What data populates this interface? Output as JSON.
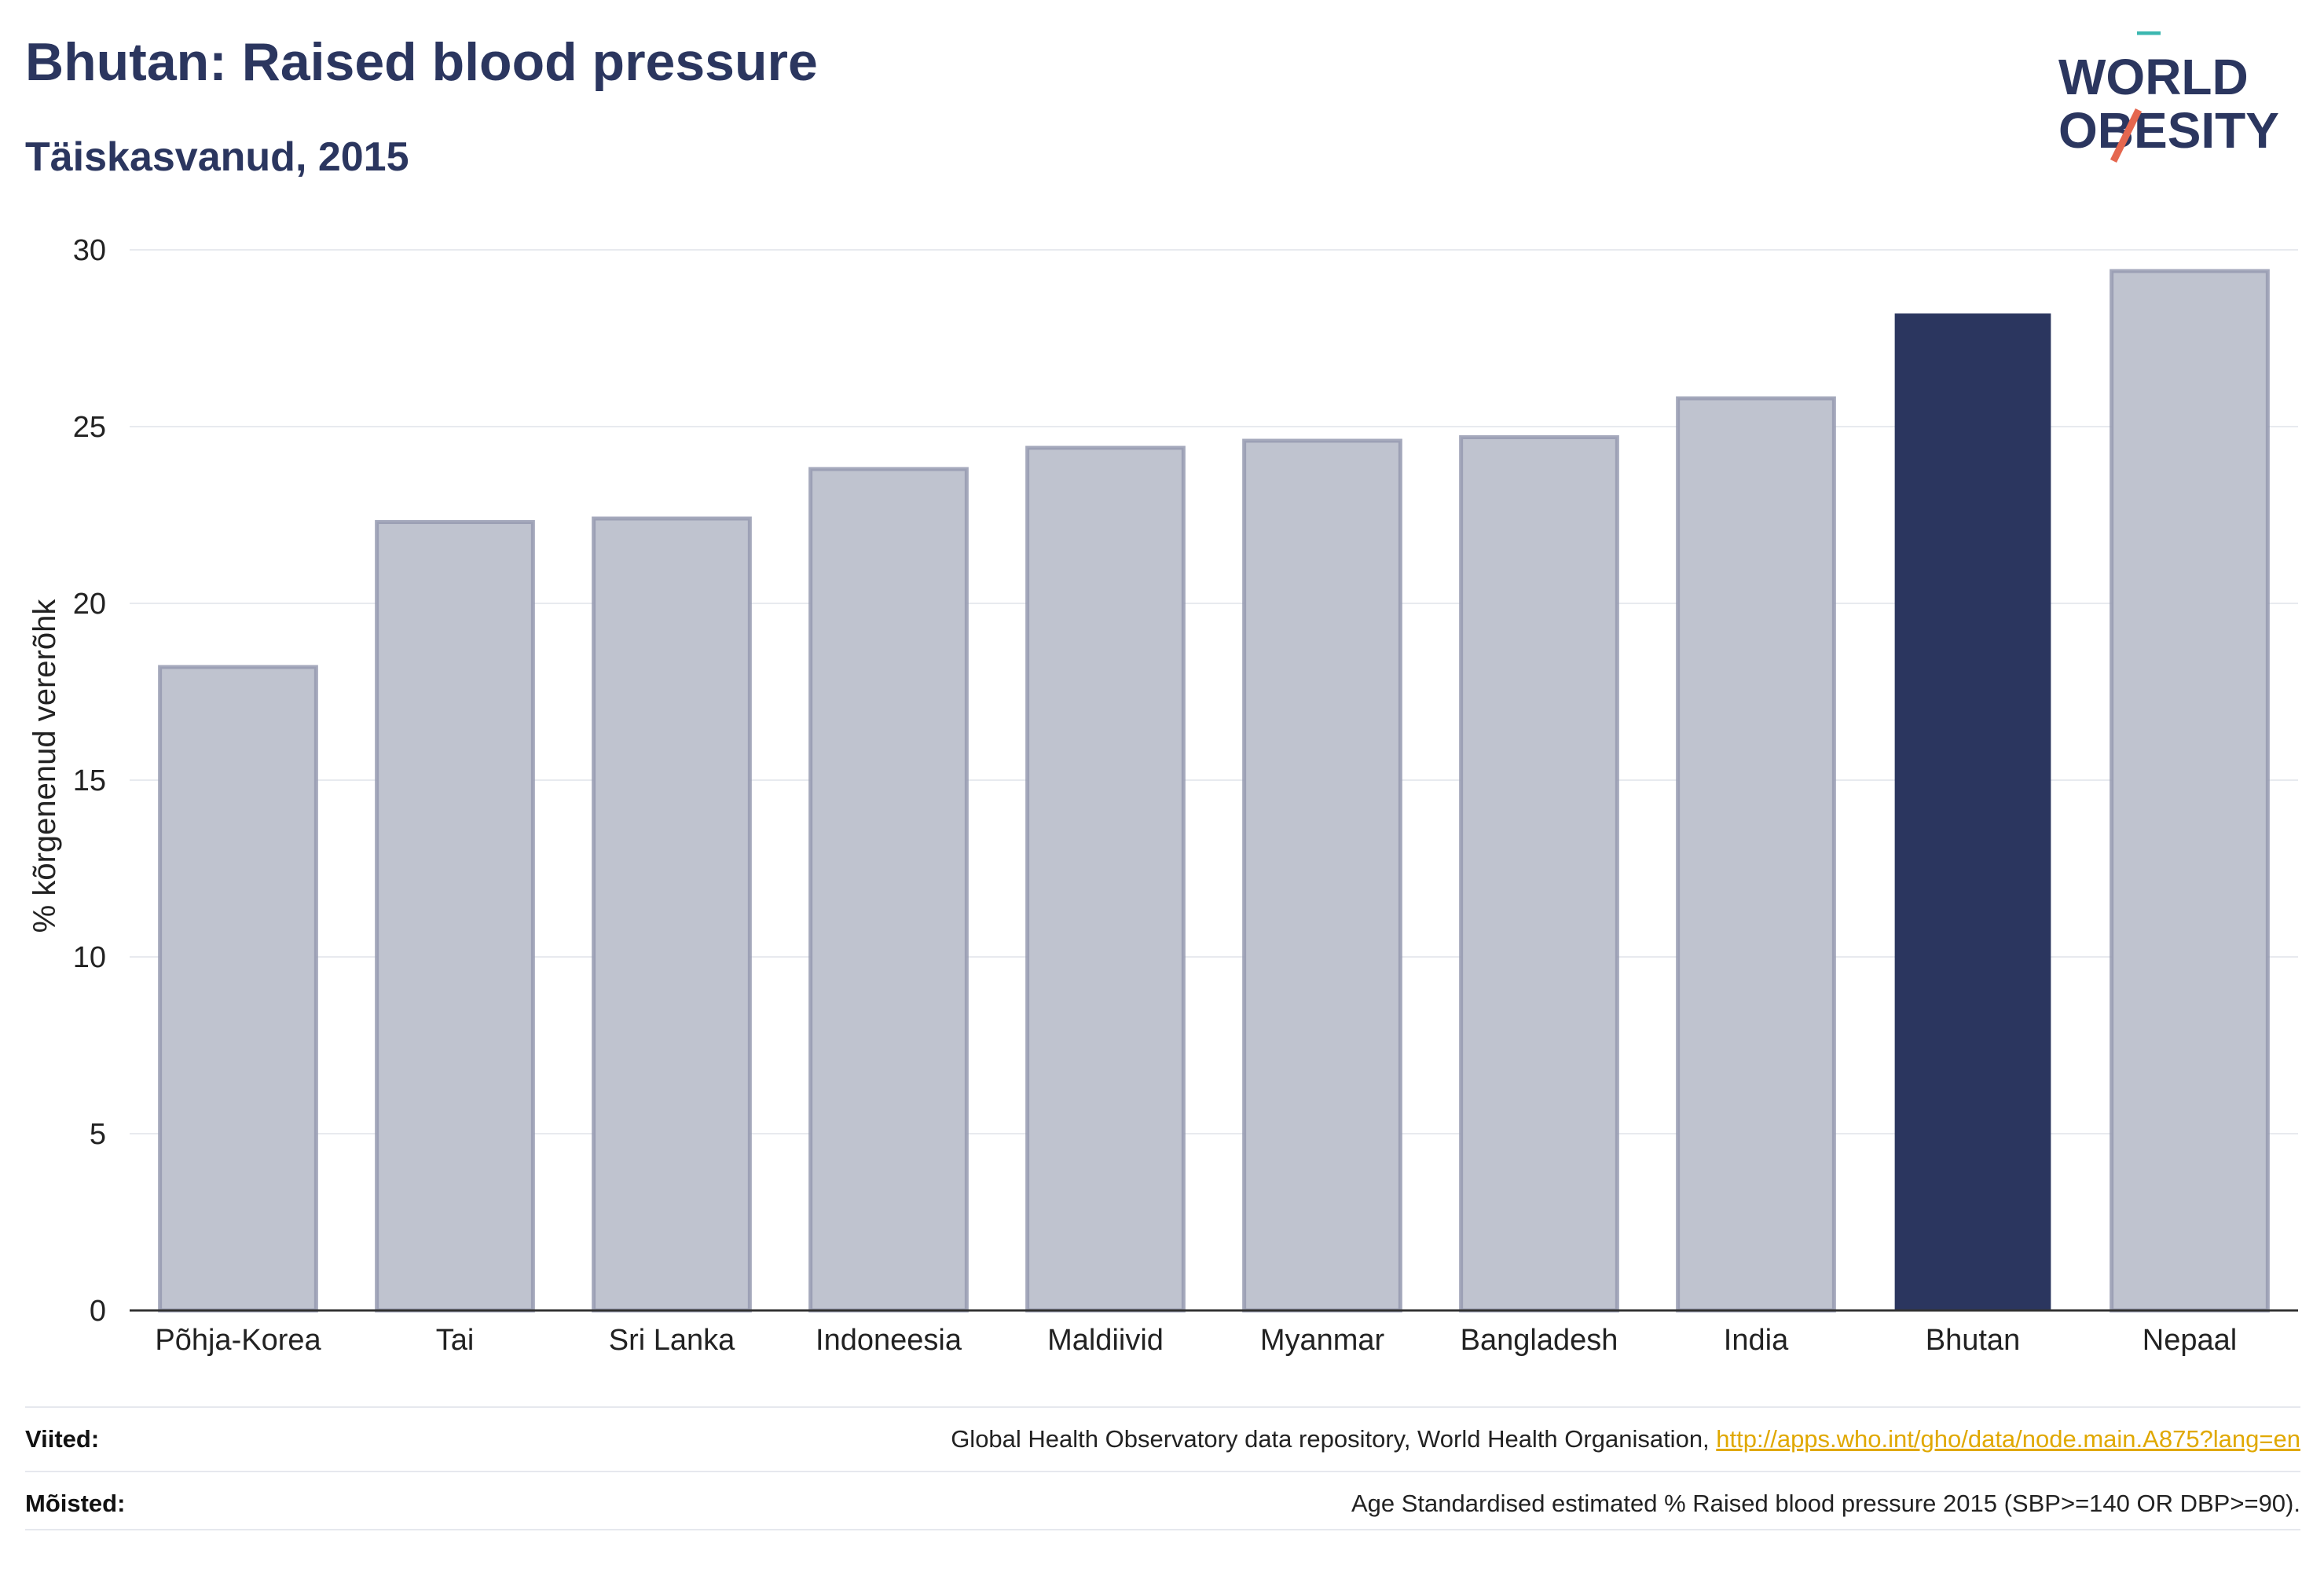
{
  "header": {
    "title": "Bhutan: Raised blood pressure",
    "subtitle": "Täiskasvanud, 2015"
  },
  "logo": {
    "line1": "WORLD",
    "line2": "OBESITY"
  },
  "colors": {
    "highlight": "#2b365f",
    "muted_fill": "#bfc3cf",
    "muted_stroke": "#959ab0",
    "accent_teal": "#3bb7b0",
    "accent_red": "#e5674f"
  },
  "chart_data": {
    "type": "bar",
    "title": "Bhutan: Raised blood pressure",
    "subtitle": "Täiskasvanud, 2015",
    "ylabel": "% kõrgenenud vererõhk",
    "xlabel": "",
    "ylim": [
      0,
      30
    ],
    "yticks": [
      0,
      5,
      10,
      15,
      20,
      25,
      30
    ],
    "grid": true,
    "categories": [
      "Põhja-Korea",
      "Tai",
      "Sri Lanka",
      "Indoneesia",
      "Maldiivid",
      "Myanmar",
      "Bangladesh",
      "India",
      "Bhutan",
      "Nepaal"
    ],
    "values": [
      18.2,
      22.3,
      22.4,
      23.8,
      24.4,
      24.6,
      24.7,
      25.8,
      28.2,
      29.4
    ],
    "highlight": "Bhutan"
  },
  "footer": {
    "sources_label": "Viited:",
    "sources_text": "Global Health Observatory data repository, World Health Organisation, ",
    "sources_link": "http://apps.who.int/gho/data/node.main.A875?lang=en",
    "definitions_label": "Mõisted:",
    "definitions_text": "Age Standardised estimated % Raised blood pressure 2015 (SBP>=140 OR DBP>=90)."
  }
}
